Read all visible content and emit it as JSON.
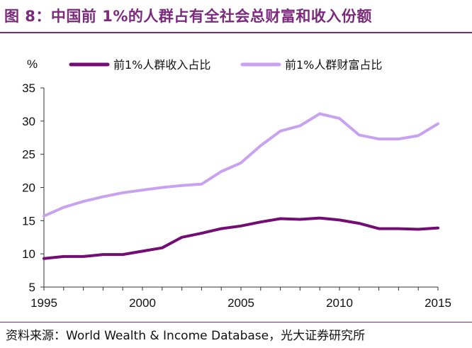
{
  "figure": {
    "title": "图 8：中国前 1%的人群占有全社会总财富和收入份额",
    "source": "资料来源：World Wealth & Income Database，光大证券研究所",
    "title_color": "#7b2a7b"
  },
  "chart_data": {
    "type": "line",
    "title": "中国前 1%的人群占有全社会总财富和收入份额",
    "xlabel": "",
    "ylabel": "%",
    "x": [
      1995,
      1996,
      1997,
      1998,
      1999,
      2000,
      2001,
      2002,
      2003,
      2004,
      2005,
      2006,
      2007,
      2008,
      2009,
      2010,
      2011,
      2012,
      2013,
      2014,
      2015
    ],
    "xlim": [
      1995,
      2015
    ],
    "ylim": [
      5,
      35
    ],
    "xticks": [
      1995,
      2000,
      2005,
      2010,
      2015
    ],
    "yticks": [
      5,
      10,
      15,
      20,
      25,
      30,
      35
    ],
    "grid": false,
    "legend_position": "top",
    "series": [
      {
        "name": "前1%人群收入占比",
        "color": "#730c73",
        "values": [
          9.3,
          9.6,
          9.6,
          9.9,
          9.9,
          10.4,
          10.9,
          12.5,
          13.1,
          13.8,
          14.2,
          14.8,
          15.3,
          15.2,
          15.4,
          15.1,
          14.6,
          13.8,
          13.8,
          13.7,
          13.9
        ]
      },
      {
        "name": "前1%人群财富占比",
        "color": "#c8a2f0",
        "values": [
          15.7,
          17.0,
          17.9,
          18.6,
          19.2,
          19.6,
          20.0,
          20.3,
          20.5,
          22.4,
          23.7,
          26.3,
          28.5,
          29.3,
          31.1,
          30.4,
          27.9,
          27.3,
          27.3,
          27.8,
          29.6
        ]
      }
    ]
  }
}
